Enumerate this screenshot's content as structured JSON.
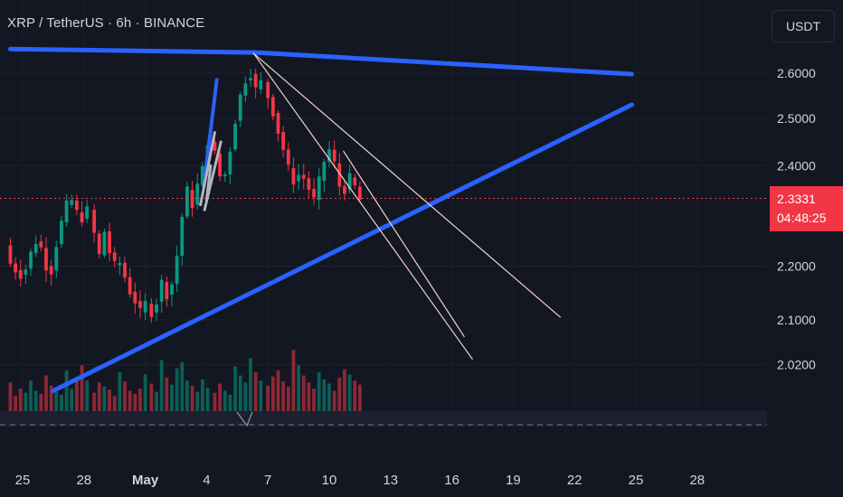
{
  "header": {
    "symbol": "XRP / TetherUS",
    "interval": "6h",
    "exchange": "BINANCE",
    "separator": "·"
  },
  "currency_button": {
    "label": "USDT"
  },
  "price_badge": {
    "price": "2.3331",
    "countdown": "04:48:25"
  },
  "colors": {
    "background": "#131722",
    "up": "#089981",
    "down": "#f23645",
    "trendline": "#2962ff",
    "fan_line": "#f5d0c8",
    "pattern_line": "#b2b5be"
  },
  "chart_data": {
    "type": "candlestick",
    "title": "XRP / TetherUS · 6h · BINANCE",
    "y_axis": {
      "scale": "log",
      "ticks": [
        "2.6000",
        "2.5000",
        "2.4000",
        "2.2000",
        "2.1000",
        "2.0200"
      ],
      "tick_values": [
        2.6,
        2.5,
        2.4,
        2.2,
        2.1,
        2.02
      ],
      "range": [
        1.96,
        2.7
      ]
    },
    "x_axis": {
      "ticks": [
        "25",
        "28",
        "May",
        "4",
        "7",
        "10",
        "13",
        "16",
        "19",
        "22",
        "25",
        "28"
      ],
      "tick_index": [
        0,
        3,
        6,
        9,
        12,
        15,
        18,
        21,
        24,
        27,
        30,
        33
      ]
    },
    "current_price": 2.3331,
    "price_line": "dotted-red",
    "ohlc_segments": [
      {
        "from_day": -0.6,
        "to_day": 3.5,
        "path": [
          2.24,
          2.2,
          2.19,
          2.18,
          2.21,
          2.25,
          2.24,
          2.2,
          2.19,
          2.26,
          2.3,
          2.34,
          2.31,
          2.29,
          2.31
        ]
      },
      {
        "from_day": 3.5,
        "to_day": 6.3,
        "path": [
          2.31,
          2.27,
          2.25,
          2.21,
          2.27,
          2.24,
          2.21,
          2.2,
          2.21,
          2.19,
          2.17,
          2.15,
          2.14,
          2.12,
          2.11,
          2.13
        ]
      },
      {
        "from_day": 6.3,
        "to_day": 9.4,
        "path": [
          2.13,
          2.11,
          2.12,
          2.14,
          2.17,
          2.15,
          2.14,
          2.18,
          2.22,
          2.28,
          2.33,
          2.36,
          2.32,
          2.35,
          2.38,
          2.4,
          2.45
        ]
      },
      {
        "from_day": 9.4,
        "to_day": 12.0,
        "path": [
          2.45,
          2.43,
          2.38,
          2.37,
          2.41,
          2.47,
          2.52,
          2.57,
          2.59,
          2.6,
          2.56,
          2.58
        ]
      },
      {
        "from_day": 12.0,
        "to_day": 14.5,
        "path": [
          2.58,
          2.55,
          2.52,
          2.48,
          2.45,
          2.41,
          2.38,
          2.36,
          2.39,
          2.37,
          2.35,
          2.33
        ]
      },
      {
        "from_day": 14.5,
        "to_day": 16.7,
        "path": [
          2.33,
          2.36,
          2.4,
          2.42,
          2.44,
          2.4,
          2.36,
          2.34,
          2.37,
          2.38,
          2.35,
          2.33
        ]
      }
    ],
    "volume": {
      "relative_heights": [
        0.28,
        0.15,
        0.22,
        0.18,
        0.3,
        0.2,
        0.17,
        0.35,
        0.25,
        0.19,
        0.16,
        0.4,
        0.22,
        0.33,
        0.45,
        0.3,
        0.18,
        0.28,
        0.24,
        0.21,
        0.15,
        0.38,
        0.29,
        0.2,
        0.17,
        0.22,
        0.36,
        0.27,
        0.19,
        0.5,
        0.33,
        0.26,
        0.42,
        0.48,
        0.3,
        0.25,
        0.19,
        0.31,
        0.23,
        0.18,
        0.27,
        0.2,
        0.16,
        0.44,
        0.35,
        0.28,
        0.52,
        0.38,
        0.3,
        0.25,
        0.34,
        0.4,
        0.29,
        0.24,
        0.6,
        0.45,
        0.35,
        0.28,
        0.22,
        0.38,
        0.31,
        0.27,
        0.2,
        0.33,
        0.41,
        0.36,
        0.3,
        0.26,
        0.55,
        0.48,
        0.37,
        0.42,
        1.0,
        0.62,
        0.44,
        0.38,
        0.33,
        0.3,
        0.85,
        0.55,
        0.4,
        0.35,
        0.3,
        0.42,
        0.38,
        0.33,
        0.28,
        0.36,
        0.41,
        0.3,
        0.26,
        0.22,
        0.35,
        0.3,
        0.28,
        0.25,
        0.2,
        0.33,
        0.29,
        0.24,
        0.18,
        0.3,
        0.26,
        0.22,
        0.2,
        0.28,
        0.24,
        0.2,
        0.17,
        0.22,
        0.26,
        0.24,
        0.3,
        0.34,
        0.28,
        0.22,
        0.2,
        0.26,
        0.23,
        0.18,
        0.15
      ]
    },
    "annotations": [
      {
        "type": "trendline",
        "name": "descending-resistance",
        "points": [
          [
            -0.6,
            2.655
          ],
          [
            11.4,
            2.647
          ],
          [
            29.8,
            2.598
          ]
        ]
      },
      {
        "type": "trendline",
        "name": "ascending-support",
        "points": [
          [
            1.5,
            1.975
          ],
          [
            29.8,
            2.53
          ]
        ]
      },
      {
        "type": "trendline",
        "name": "flag-segment",
        "points": [
          [
            8.9,
            2.37
          ],
          [
            9.5,
            2.585
          ]
        ]
      },
      {
        "type": "fan",
        "name": "fan-line-1",
        "points": [
          [
            11.3,
            2.645
          ],
          [
            26.3,
            2.105
          ]
        ]
      },
      {
        "type": "fan",
        "name": "fan-line-2",
        "points": [
          [
            11.3,
            2.645
          ],
          [
            22.0,
            2.03
          ]
        ]
      },
      {
        "type": "fan",
        "name": "fan-line-3",
        "points": [
          [
            15.7,
            2.43
          ],
          [
            21.6,
            2.07
          ]
        ]
      }
    ]
  }
}
